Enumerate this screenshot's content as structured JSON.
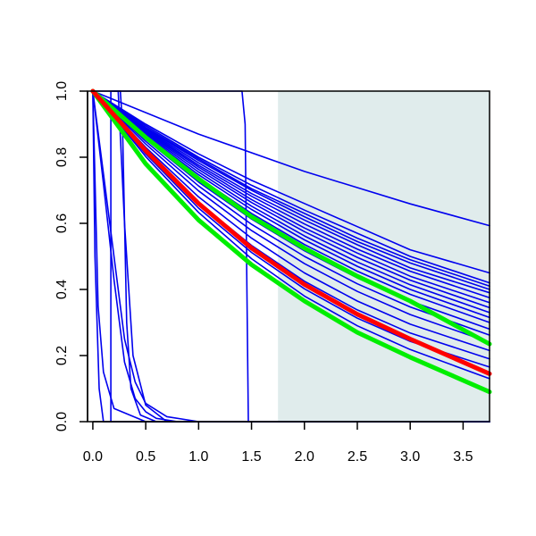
{
  "chart_data": {
    "type": "line",
    "title": "",
    "xlabel": "",
    "ylabel": "",
    "xlim": [
      -0.05,
      3.75
    ],
    "ylim": [
      0.0,
      1.0
    ],
    "grid": false,
    "legend": "none",
    "x_ticks": [
      "0.0",
      "0.5",
      "1.0",
      "1.5",
      "2.0",
      "2.5",
      "3.0",
      "3.5"
    ],
    "x_tick_values": [
      0.0,
      0.5,
      1.0,
      1.5,
      2.0,
      2.5,
      3.0,
      3.5
    ],
    "y_ticks": [
      "0.0",
      "0.2",
      "0.4",
      "0.6",
      "0.8",
      "1.0"
    ],
    "y_tick_values": [
      0.0,
      0.2,
      0.4,
      0.6,
      0.8,
      1.0
    ],
    "shaded_region": {
      "x_start": 1.75,
      "x_end": 3.75,
      "color": "#e0ecec"
    },
    "colors": {
      "blue": "#0000ee",
      "red": "#ff0000",
      "green": "#00ee00",
      "shade": "#e0ecec",
      "axis": "#000000"
    },
    "series": [
      {
        "color": "#0000ee",
        "width": 1.6,
        "points": [
          [
            0,
            1
          ],
          [
            1,
            0.87
          ],
          [
            2,
            0.757
          ],
          [
            3,
            0.659
          ],
          [
            3.75,
            0.593
          ]
        ]
      },
      {
        "color": "#0000ee",
        "width": 1.6,
        "points": [
          [
            0,
            1
          ],
          [
            0.5,
            0.9
          ],
          [
            1,
            0.81
          ],
          [
            1.5,
            0.73
          ],
          [
            2,
            0.66
          ],
          [
            2.5,
            0.59
          ],
          [
            3,
            0.52
          ],
          [
            3.75,
            0.45
          ]
        ]
      },
      {
        "color": "#0000ee",
        "width": 1.6,
        "points": [
          [
            0,
            1
          ],
          [
            0.5,
            0.895
          ],
          [
            1,
            0.8
          ],
          [
            1.5,
            0.715
          ],
          [
            2,
            0.64
          ],
          [
            2.5,
            0.57
          ],
          [
            3,
            0.5
          ],
          [
            3.75,
            0.42
          ]
        ]
      },
      {
        "color": "#0000ee",
        "width": 1.6,
        "points": [
          [
            0,
            1
          ],
          [
            0.5,
            0.89
          ],
          [
            1,
            0.795
          ],
          [
            1.5,
            0.705
          ],
          [
            2,
            0.63
          ],
          [
            2.5,
            0.555
          ],
          [
            3,
            0.49
          ],
          [
            3.75,
            0.41
          ]
        ]
      },
      {
        "color": "#0000ee",
        "width": 1.6,
        "points": [
          [
            0,
            1
          ],
          [
            0.5,
            0.888
          ],
          [
            1,
            0.79
          ],
          [
            1.5,
            0.7
          ],
          [
            2,
            0.62
          ],
          [
            2.5,
            0.545
          ],
          [
            3,
            0.48
          ],
          [
            3.75,
            0.4
          ]
        ]
      },
      {
        "color": "#0000ee",
        "width": 1.6,
        "points": [
          [
            0,
            1
          ],
          [
            0.5,
            0.885
          ],
          [
            1,
            0.783
          ],
          [
            1.5,
            0.69
          ],
          [
            2,
            0.61
          ],
          [
            2.5,
            0.535
          ],
          [
            3,
            0.465
          ],
          [
            3.75,
            0.39
          ]
        ]
      },
      {
        "color": "#0000ee",
        "width": 1.6,
        "points": [
          [
            0,
            1
          ],
          [
            0.5,
            0.882
          ],
          [
            1,
            0.776
          ],
          [
            1.5,
            0.682
          ],
          [
            2,
            0.598
          ],
          [
            2.5,
            0.522
          ],
          [
            3,
            0.455
          ],
          [
            3.75,
            0.375
          ]
        ]
      },
      {
        "color": "#0000ee",
        "width": 1.6,
        "points": [
          [
            0,
            1
          ],
          [
            0.5,
            0.878
          ],
          [
            1,
            0.77
          ],
          [
            1.5,
            0.672
          ],
          [
            2,
            0.586
          ],
          [
            2.5,
            0.51
          ],
          [
            3,
            0.44
          ],
          [
            3.75,
            0.36
          ]
        ]
      },
      {
        "color": "#0000ee",
        "width": 1.6,
        "points": [
          [
            0,
            1
          ],
          [
            0.5,
            0.875
          ],
          [
            1,
            0.763
          ],
          [
            1.5,
            0.663
          ],
          [
            2,
            0.575
          ],
          [
            2.5,
            0.497
          ],
          [
            3,
            0.428
          ],
          [
            3.75,
            0.345
          ]
        ]
      },
      {
        "color": "#0000ee",
        "width": 1.6,
        "points": [
          [
            0,
            1
          ],
          [
            0.5,
            0.871
          ],
          [
            1,
            0.755
          ],
          [
            1.5,
            0.652
          ],
          [
            2,
            0.562
          ],
          [
            2.5,
            0.483
          ],
          [
            3,
            0.414
          ],
          [
            3.75,
            0.33
          ]
        ]
      },
      {
        "color": "#0000ee",
        "width": 1.6,
        "points": [
          [
            0,
            1
          ],
          [
            0.5,
            0.867
          ],
          [
            1,
            0.747
          ],
          [
            1.5,
            0.642
          ],
          [
            2,
            0.55
          ],
          [
            2.5,
            0.47
          ],
          [
            3,
            0.4
          ],
          [
            3.75,
            0.315
          ]
        ]
      },
      {
        "color": "#0000ee",
        "width": 1.6,
        "points": [
          [
            0,
            1
          ],
          [
            0.5,
            0.862
          ],
          [
            1,
            0.738
          ],
          [
            1.5,
            0.63
          ],
          [
            2,
            0.536
          ],
          [
            2.5,
            0.455
          ],
          [
            3,
            0.385
          ],
          [
            3.75,
            0.3
          ]
        ]
      },
      {
        "color": "#0000ee",
        "width": 1.6,
        "points": [
          [
            0,
            1
          ],
          [
            0.5,
            0.855
          ],
          [
            1,
            0.725
          ],
          [
            1.5,
            0.613
          ],
          [
            2,
            0.517
          ],
          [
            2.5,
            0.435
          ],
          [
            3,
            0.365
          ],
          [
            3.75,
            0.28
          ]
        ]
      },
      {
        "color": "#0000ee",
        "width": 1.6,
        "points": [
          [
            0,
            1
          ],
          [
            0.5,
            0.848
          ],
          [
            1,
            0.713
          ],
          [
            1.5,
            0.597
          ],
          [
            2,
            0.5
          ],
          [
            2.5,
            0.417
          ],
          [
            3,
            0.347
          ],
          [
            3.75,
            0.262
          ]
        ]
      },
      {
        "color": "#0000ee",
        "width": 1.6,
        "points": [
          [
            0,
            1
          ],
          [
            0.5,
            0.84
          ],
          [
            1,
            0.698
          ],
          [
            1.5,
            0.578
          ],
          [
            2,
            0.478
          ],
          [
            2.5,
            0.394
          ],
          [
            3,
            0.324
          ],
          [
            3.75,
            0.24
          ]
        ]
      },
      {
        "color": "#0000ee",
        "width": 1.6,
        "points": [
          [
            0,
            1
          ],
          [
            0.5,
            0.83
          ],
          [
            1,
            0.68
          ],
          [
            1.5,
            0.555
          ],
          [
            2,
            0.45
          ],
          [
            2.5,
            0.365
          ],
          [
            3,
            0.295
          ],
          [
            3.75,
            0.215
          ]
        ]
      },
      {
        "color": "#0000ee",
        "width": 1.6,
        "points": [
          [
            0,
            1
          ],
          [
            0.5,
            0.82
          ],
          [
            1,
            0.663
          ],
          [
            1.5,
            0.533
          ],
          [
            2,
            0.425
          ],
          [
            2.5,
            0.338
          ],
          [
            3,
            0.268
          ],
          [
            3.75,
            0.19
          ]
        ]
      },
      {
        "color": "#0000ee",
        "width": 1.6,
        "points": [
          [
            0,
            1
          ],
          [
            0.5,
            0.81
          ],
          [
            1,
            0.646
          ],
          [
            1.5,
            0.512
          ],
          [
            2,
            0.402
          ],
          [
            2.5,
            0.313
          ],
          [
            3,
            0.243
          ],
          [
            3.75,
            0.165
          ]
        ]
      },
      {
        "color": "#0000ee",
        "width": 1.6,
        "points": [
          [
            0,
            1
          ],
          [
            0.5,
            0.802
          ],
          [
            1,
            0.633
          ],
          [
            1.5,
            0.493
          ],
          [
            2,
            0.38
          ],
          [
            2.5,
            0.29
          ],
          [
            3,
            0.218
          ],
          [
            3.75,
            0.13
          ]
        ]
      },
      {
        "color": "#0000ee",
        "width": 1.6,
        "points": [
          [
            0,
            1
          ],
          [
            0.05,
            0.35
          ],
          [
            0.1,
            0.15
          ],
          [
            0.2,
            0.04
          ],
          [
            0.5,
            0.0
          ],
          [
            3.75,
            0.0
          ]
        ]
      },
      {
        "color": "#0000ee",
        "width": 1.6,
        "points": [
          [
            0,
            1
          ],
          [
            0.02,
            0.5
          ],
          [
            0.06,
            0.1
          ],
          [
            0.1,
            0.0
          ],
          [
            3.75,
            0.0
          ]
        ]
      },
      {
        "color": "#0000ee",
        "width": 1.6,
        "points": [
          [
            0,
            1
          ],
          [
            0.1,
            0.75
          ],
          [
            0.2,
            0.5
          ],
          [
            0.3,
            0.25
          ],
          [
            0.4,
            0.12
          ],
          [
            0.5,
            0.055
          ],
          [
            0.7,
            0.015
          ],
          [
            1.0,
            0.0
          ],
          [
            3.75,
            0.0
          ]
        ]
      },
      {
        "color": "#0000ee",
        "width": 1.6,
        "points": [
          [
            0,
            1
          ],
          [
            0.1,
            0.72
          ],
          [
            0.2,
            0.43
          ],
          [
            0.3,
            0.18
          ],
          [
            0.4,
            0.07
          ],
          [
            0.5,
            0.03
          ],
          [
            0.6,
            0.01
          ],
          [
            0.8,
            0.0
          ],
          [
            3.75,
            0.0
          ]
        ]
      },
      {
        "color": "#0000ee",
        "width": 1.6,
        "points": [
          [
            0.17,
            1
          ],
          [
            0.17,
            0.0
          ],
          [
            3.75,
            0.0
          ]
        ]
      },
      {
        "color": "#0000ee",
        "width": 1.6,
        "points": [
          [
            0.2,
            1
          ],
          [
            0.26,
            1
          ],
          [
            0.28,
            0.9
          ],
          [
            0.32,
            0.3
          ],
          [
            0.36,
            0.1
          ],
          [
            0.45,
            0.02
          ],
          [
            0.6,
            0.0
          ],
          [
            3.75,
            0.0
          ]
        ]
      },
      {
        "color": "#0000ee",
        "width": 1.6,
        "points": [
          [
            0.18,
            1
          ],
          [
            0.24,
            1
          ],
          [
            0.3,
            0.6
          ],
          [
            0.38,
            0.2
          ],
          [
            0.5,
            0.05
          ],
          [
            0.7,
            0.0
          ],
          [
            3.75,
            0.0
          ]
        ]
      },
      {
        "color": "#0000ee",
        "width": 1.6,
        "points": [
          [
            0,
            1
          ],
          [
            1.41,
            1
          ],
          [
            1.44,
            0.9
          ],
          [
            1.47,
            0.0
          ],
          [
            3.75,
            0.0
          ]
        ]
      },
      {
        "color": "#00ee00",
        "width": 5,
        "points": [
          [
            0,
            1
          ],
          [
            0.5,
            0.86
          ],
          [
            1,
            0.735
          ],
          [
            1.5,
            0.62
          ],
          [
            2,
            0.525
          ],
          [
            2.5,
            0.44
          ],
          [
            3,
            0.365
          ],
          [
            3.75,
            0.235
          ]
        ]
      },
      {
        "color": "#00ee00",
        "width": 5,
        "points": [
          [
            0,
            1
          ],
          [
            0.5,
            0.78
          ],
          [
            1,
            0.61
          ],
          [
            1.5,
            0.475
          ],
          [
            2,
            0.365
          ],
          [
            2.5,
            0.27
          ],
          [
            3,
            0.195
          ],
          [
            3.75,
            0.09
          ]
        ]
      },
      {
        "color": "#ff0000",
        "width": 5,
        "points": [
          [
            0,
            1
          ],
          [
            0.5,
            0.82
          ],
          [
            1,
            0.66
          ],
          [
            1.5,
            0.525
          ],
          [
            2,
            0.415
          ],
          [
            2.5,
            0.325
          ],
          [
            3,
            0.25
          ],
          [
            3.75,
            0.145
          ]
        ]
      }
    ]
  }
}
